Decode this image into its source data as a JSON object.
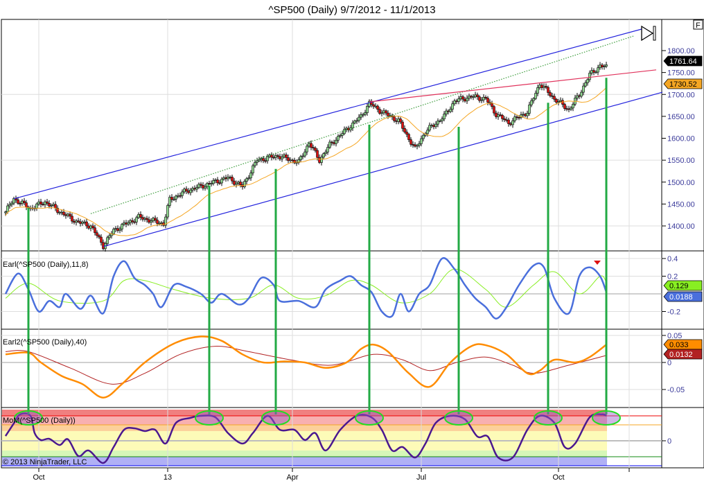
{
  "title": "^SP500 (Daily)  9/7/2012 - 11/1/2013",
  "f_button": "F",
  "copyright": "© 2013 NinjaTrader, LLC",
  "colors": {
    "up": "#90d890",
    "down": "#e01010",
    "ma": "#f5a623",
    "channel": "#2222dd",
    "dotted": "#3a9a3a",
    "red_line": "#e0305a",
    "vline": "#22aa44",
    "earl_fast": "#4a6fdc",
    "earl_slow": "#88ee22",
    "earl2_fast": "#ff8c00",
    "earl2_slow": "#b22222",
    "mom": "#4b1890"
  },
  "chart_data": [
    {
      "type": "candlestick",
      "name": "price",
      "title": "^SP500 (Daily)  9/7/2012 - 11/1/2013",
      "ylim": [
        1330,
        1860
      ],
      "yticks": [
        "1800.00",
        "1750.00",
        "1700.00",
        "1650.00",
        "1600.00",
        "1550.00",
        "1500.00",
        "1450.00",
        "1400.00"
      ],
      "ytick_values": [
        1800,
        1750,
        1700,
        1650,
        1600,
        1550,
        1500,
        1450,
        1400
      ],
      "x_bars": 290,
      "close_anchors": [
        [
          0,
          1432
        ],
        [
          4,
          1462
        ],
        [
          12,
          1440
        ],
        [
          19,
          1455
        ],
        [
          27,
          1430
        ],
        [
          34,
          1410
        ],
        [
          41,
          1400
        ],
        [
          47,
          1355
        ],
        [
          52,
          1390
        ],
        [
          64,
          1420
        ],
        [
          76,
          1405
        ],
        [
          79,
          1460
        ],
        [
          87,
          1480
        ],
        [
          97,
          1495
        ],
        [
          107,
          1510
        ],
        [
          114,
          1490
        ],
        [
          121,
          1550
        ],
        [
          131,
          1560
        ],
        [
          141,
          1545
        ],
        [
          146,
          1590
        ],
        [
          151,
          1550
        ],
        [
          156,
          1585
        ],
        [
          164,
          1620
        ],
        [
          171,
          1650
        ],
        [
          175,
          1680
        ],
        [
          181,
          1660
        ],
        [
          189,
          1640
        ],
        [
          197,
          1575
        ],
        [
          202,
          1615
        ],
        [
          211,
          1650
        ],
        [
          216,
          1685
        ],
        [
          224,
          1695
        ],
        [
          231,
          1690
        ],
        [
          236,
          1655
        ],
        [
          242,
          1635
        ],
        [
          251,
          1660
        ],
        [
          257,
          1725
        ],
        [
          264,
          1690
        ],
        [
          271,
          1665
        ],
        [
          276,
          1700
        ],
        [
          281,
          1745
        ],
        [
          286,
          1765
        ],
        [
          289,
          1762
        ]
      ],
      "ma_period": 20,
      "last_price": "1761.64",
      "ma_value": "1730.52",
      "trendlines": [
        {
          "name": "upper-channel-line",
          "color_key": "channel",
          "from": [
            4,
            1462
          ],
          "to": [
            306,
            1849
          ]
        },
        {
          "name": "lower-channel-line",
          "color_key": "channel",
          "from": [
            47,
            1353
          ],
          "to": [
            316,
            1705
          ]
        },
        {
          "name": "dotted-mid-line",
          "color_key": "dotted",
          "from": [
            41,
            1428
          ],
          "to": [
            302,
            1833
          ],
          "dashed": true
        },
        {
          "name": "red-trend-line",
          "color_key": "red_line",
          "from": [
            175,
            1683
          ],
          "to": [
            313,
            1756
          ]
        }
      ],
      "vertical_markers": [
        [
          11,
          1441
        ],
        [
          98,
          1492
        ],
        [
          130,
          1530
        ],
        [
          175,
          1631
        ],
        [
          218,
          1626
        ],
        [
          261,
          1681
        ],
        [
          289,
          1738
        ]
      ]
    },
    {
      "type": "line",
      "name": "earl",
      "label": "Earl(^SP500 (Daily),11,8)",
      "ylim": [
        -0.4,
        0.45
      ],
      "yticks": [
        "0.4",
        "0.2",
        "-0.2"
      ],
      "ytick_values": [
        0.4,
        0.2,
        -0.2
      ],
      "values_display": [
        "0.129",
        "0.0188"
      ],
      "series": [
        {
          "name": "fast",
          "color_key": "earl_fast",
          "points": [
            [
              0,
              0
            ],
            [
              6,
              0.23
            ],
            [
              11,
              0.05
            ],
            [
              16,
              -0.2
            ],
            [
              21,
              -0.08
            ],
            [
              26,
              -0.15
            ],
            [
              29,
              0
            ],
            [
              36,
              -0.17
            ],
            [
              41,
              -0.02
            ],
            [
              47,
              -0.22
            ],
            [
              52,
              0.2
            ],
            [
              57,
              0.37
            ],
            [
              62,
              0.18
            ],
            [
              67,
              0.1
            ],
            [
              71,
              0
            ],
            [
              75,
              -0.15
            ],
            [
              81,
              0.1
            ],
            [
              87,
              0.08
            ],
            [
              94,
              0
            ],
            [
              99,
              -0.1
            ],
            [
              104,
              0
            ],
            [
              112,
              -0.12
            ],
            [
              117,
              -0.05
            ],
            [
              123,
              0.18
            ],
            [
              129,
              0.1
            ],
            [
              132,
              -0.08
            ],
            [
              141,
              -0.08
            ],
            [
              149,
              -0.15
            ],
            [
              154,
              0.05
            ],
            [
              161,
              0.15
            ],
            [
              166,
              0.2
            ],
            [
              171,
              0.1
            ],
            [
              176,
              0.02
            ],
            [
              181,
              -0.2
            ],
            [
              186,
              -0.25
            ],
            [
              190,
              0
            ],
            [
              194,
              -0.2
            ],
            [
              199,
              0
            ],
            [
              204,
              0.1
            ],
            [
              210,
              0.4
            ],
            [
              216,
              0.28
            ],
            [
              221,
              0.1
            ],
            [
              226,
              -0.05
            ],
            [
              231,
              -0.15
            ],
            [
              236,
              -0.28
            ],
            [
              241,
              -0.15
            ],
            [
              247,
              0.1
            ],
            [
              254,
              0.32
            ],
            [
              259,
              0.3
            ],
            [
              264,
              -0.05
            ],
            [
              271,
              -0.22
            ],
            [
              276,
              0.2
            ],
            [
              281,
              0.3
            ],
            [
              286,
              0.2
            ],
            [
              289,
              0.02
            ]
          ]
        },
        {
          "name": "slow",
          "color_key": "earl_slow",
          "points": [
            [
              0,
              -0.05
            ],
            [
              11,
              0.12
            ],
            [
              26,
              -0.08
            ],
            [
              47,
              -0.08
            ],
            [
              57,
              0.15
            ],
            [
              67,
              0.15
            ],
            [
              81,
              0.05
            ],
            [
              99,
              -0.05
            ],
            [
              117,
              -0.05
            ],
            [
              129,
              0.1
            ],
            [
              141,
              -0.05
            ],
            [
              154,
              -0.02
            ],
            [
              166,
              0.15
            ],
            [
              176,
              0.1
            ],
            [
              190,
              -0.1
            ],
            [
              204,
              0
            ],
            [
              216,
              0.28
            ],
            [
              231,
              0.05
            ],
            [
              241,
              -0.15
            ],
            [
              254,
              0.1
            ],
            [
              264,
              0.25
            ],
            [
              276,
              0
            ],
            [
              286,
              0.2
            ],
            [
              289,
              0.13
            ]
          ]
        }
      ]
    },
    {
      "type": "line",
      "name": "earl2",
      "label": "Earl2(^SP500 (Daily),40)",
      "ylim": [
        -0.08,
        0.065
      ],
      "yticks": [
        "0.05",
        "0",
        "-0.05"
      ],
      "ytick_values": [
        0.05,
        0,
        -0.05
      ],
      "values_display": [
        "0.033",
        "0.0132"
      ],
      "series": [
        {
          "name": "fast",
          "color_key": "earl2_fast",
          "points": [
            [
              0,
              0.015
            ],
            [
              11,
              0.018
            ],
            [
              17,
              0
            ],
            [
              27,
              -0.025
            ],
            [
              37,
              -0.04
            ],
            [
              47,
              -0.065
            ],
            [
              56,
              -0.04
            ],
            [
              67,
              0
            ],
            [
              81,
              0.035
            ],
            [
              94,
              0.048
            ],
            [
              104,
              0.04
            ],
            [
              114,
              0.015
            ],
            [
              124,
              0
            ],
            [
              134,
              0.002
            ],
            [
              144,
              0
            ],
            [
              154,
              -0.01
            ],
            [
              164,
              0
            ],
            [
              171,
              0.025
            ],
            [
              177,
              0.033
            ],
            [
              184,
              0.02
            ],
            [
              194,
              -0.02
            ],
            [
              204,
              -0.045
            ],
            [
              214,
              0
            ],
            [
              224,
              0.03
            ],
            [
              231,
              0.032
            ],
            [
              241,
              0.015
            ],
            [
              251,
              -0.02
            ],
            [
              257,
              -0.015
            ],
            [
              264,
              0.005
            ],
            [
              274,
              0
            ],
            [
              281,
              0.01
            ],
            [
              289,
              0.033
            ]
          ]
        },
        {
          "name": "slow",
          "color_key": "earl2_slow",
          "points": [
            [
              0,
              0.02
            ],
            [
              11,
              0.02
            ],
            [
              31,
              -0.01
            ],
            [
              51,
              -0.04
            ],
            [
              67,
              -0.02
            ],
            [
              84,
              0.015
            ],
            [
              101,
              0.03
            ],
            [
              117,
              0.02
            ],
            [
              137,
              0.005
            ],
            [
              157,
              -0.005
            ],
            [
              177,
              0.015
            ],
            [
              191,
              0.005
            ],
            [
              204,
              -0.015
            ],
            [
              217,
              0
            ],
            [
              231,
              0.01
            ],
            [
              244,
              -0.005
            ],
            [
              254,
              -0.02
            ],
            [
              271,
              -0.005
            ],
            [
              289,
              0.013
            ]
          ]
        }
      ]
    },
    {
      "type": "line",
      "name": "mom",
      "label": "MoM(^SP500 (Daily))",
      "ylim": [
        -1.0,
        1.25
      ],
      "yticks": [
        "0"
      ],
      "ytick_values": [
        0
      ],
      "bands": [
        [
          1.0,
          1.25,
          "#f08080"
        ],
        [
          0.64,
          1.0,
          "#f8b0b0"
        ],
        [
          0.39,
          0.64,
          "#fcd09a"
        ],
        [
          -0.39,
          0.39,
          "#fdfbb8"
        ],
        [
          -0.64,
          -0.39,
          "#d6f7b8"
        ],
        [
          -1.0,
          -0.64,
          "#b0b0f5"
        ]
      ],
      "band_lines": [
        [
          1.0,
          "#ee0000"
        ],
        [
          0.64,
          "#f5a623"
        ],
        [
          0,
          "#a0a0a0"
        ],
        [
          -0.64,
          "#118811"
        ],
        [
          -1.0,
          "#0000ee"
        ]
      ],
      "series": [
        {
          "name": "mom",
          "color_key": "mom",
          "points": [
            [
              0,
              0.19
            ],
            [
              4,
              0.7
            ],
            [
              7,
              1.06
            ],
            [
              12,
              1.0
            ],
            [
              14,
              0.31
            ],
            [
              17,
              0.03
            ],
            [
              21,
              0.08
            ],
            [
              26,
              -0.17
            ],
            [
              30,
              0.06
            ],
            [
              35,
              -0.61
            ],
            [
              40,
              -0.39
            ],
            [
              47,
              -0.89
            ],
            [
              52,
              -0.25
            ],
            [
              57,
              0.44
            ],
            [
              62,
              0.5
            ],
            [
              67,
              0.39
            ],
            [
              72,
              0.44
            ],
            [
              77,
              -0.11
            ],
            [
              82,
              0.72
            ],
            [
              89,
              0.92
            ],
            [
              94,
              1.0
            ],
            [
              101,
              0.94
            ],
            [
              107,
              0.31
            ],
            [
              114,
              -0.11
            ],
            [
              119,
              0.31
            ],
            [
              126,
              1.0
            ],
            [
              132,
              0.44
            ],
            [
              139,
              0.44
            ],
            [
              144,
              0.03
            ],
            [
              149,
              0.31
            ],
            [
              154,
              -0.39
            ],
            [
              161,
              0.44
            ],
            [
              169,
              1.0
            ],
            [
              176,
              0.94
            ],
            [
              181,
              0.44
            ],
            [
              186,
              -0.39
            ],
            [
              191,
              -0.25
            ],
            [
              197,
              -0.67
            ],
            [
              202,
              -0.11
            ],
            [
              207,
              0.72
            ],
            [
              214,
              1.0
            ],
            [
              221,
              0.86
            ],
            [
              227,
              0.17
            ],
            [
              232,
              0.17
            ],
            [
              237,
              -0.67
            ],
            [
              244,
              -0.67
            ],
            [
              251,
              0.44
            ],
            [
              257,
              1.0
            ],
            [
              264,
              0.72
            ],
            [
              269,
              -0.25
            ],
            [
              274,
              -0.11
            ],
            [
              281,
              0.94
            ],
            [
              287,
              1.06
            ],
            [
              289,
              1.0
            ]
          ]
        }
      ]
    }
  ],
  "x_axis": {
    "labels": [
      "Oct",
      "13",
      "Apr",
      "Jul",
      "Oct"
    ],
    "label_bars": [
      16,
      78,
      138,
      200,
      266
    ],
    "extra_grid_bar": 300
  }
}
